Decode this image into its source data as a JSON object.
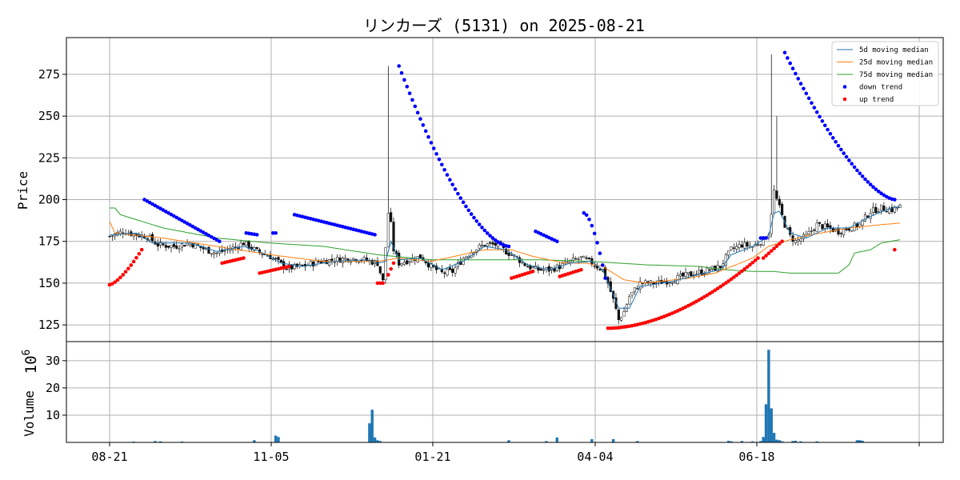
{
  "chart_data": {
    "type": "candlestick",
    "title": "リンカーズ (5131) on 2025-08-21",
    "x_tick_labels": [
      "08-21",
      "11-05",
      "01-21",
      "04-04",
      "06-18",
      ""
    ],
    "price_panel": {
      "ylabel": "Price",
      "yticks": [
        125,
        150,
        175,
        200,
        225,
        250,
        275
      ],
      "ylim": [
        115,
        297
      ],
      "grid": true,
      "legend": {
        "placement": "top-right",
        "entries": [
          {
            "label": " 5d moving median",
            "color": "#1f77b4",
            "style": "line"
          },
          {
            "label": "25d moving median",
            "color": "#ff7f0e",
            "style": "line"
          },
          {
            "label": "75d moving median",
            "color": "#2ca02c",
            "style": "line"
          },
          {
            "label": "down trend",
            "color": "#0000ff",
            "style": "dot"
          },
          {
            "label": "up trend",
            "color": "#ff0000",
            "style": "dot"
          }
        ]
      },
      "candle_anchor_closes": [
        [
          0,
          178
        ],
        [
          5,
          181
        ],
        [
          10,
          179
        ],
        [
          14,
          178
        ],
        [
          18,
          173
        ],
        [
          24,
          172
        ],
        [
          30,
          174
        ],
        [
          36,
          170
        ],
        [
          40,
          168
        ],
        [
          46,
          171
        ],
        [
          50,
          174
        ],
        [
          55,
          169
        ],
        [
          60,
          166
        ],
        [
          66,
          159
        ],
        [
          72,
          160
        ],
        [
          78,
          163
        ],
        [
          84,
          164
        ],
        [
          90,
          165
        ],
        [
          95,
          164
        ],
        [
          100,
          162
        ],
        [
          102,
          151
        ],
        [
          104,
          192
        ],
        [
          105,
          185
        ],
        [
          106,
          170
        ],
        [
          108,
          162
        ],
        [
          112,
          164
        ],
        [
          116,
          166
        ],
        [
          120,
          160
        ],
        [
          124,
          156
        ],
        [
          128,
          157
        ],
        [
          132,
          165
        ],
        [
          136,
          170
        ],
        [
          140,
          173
        ],
        [
          144,
          173
        ],
        [
          148,
          169
        ],
        [
          152,
          165
        ],
        [
          156,
          160
        ],
        [
          160,
          158
        ],
        [
          164,
          158
        ],
        [
          168,
          160
        ],
        [
          172,
          163
        ],
        [
          176,
          165
        ],
        [
          180,
          162
        ],
        [
          184,
          158
        ],
        [
          186,
          150
        ],
        [
          188,
          140
        ],
        [
          190,
          128
        ],
        [
          192,
          133
        ],
        [
          194,
          142
        ],
        [
          198,
          150
        ],
        [
          204,
          150
        ],
        [
          210,
          152
        ],
        [
          216,
          155
        ],
        [
          222,
          157
        ],
        [
          228,
          160
        ],
        [
          232,
          170
        ],
        [
          236,
          173
        ],
        [
          240,
          172
        ],
        [
          244,
          176
        ],
        [
          246,
          180
        ],
        [
          248,
          205
        ],
        [
          250,
          195
        ],
        [
          252,
          185
        ],
        [
          254,
          178
        ],
        [
          256,
          175
        ],
        [
          260,
          178
        ],
        [
          264,
          185
        ],
        [
          268,
          183
        ],
        [
          272,
          181
        ],
        [
          276,
          183
        ],
        [
          280,
          185
        ],
        [
          284,
          193
        ],
        [
          288,
          195
        ],
        [
          292,
          194
        ],
        [
          295,
          196
        ]
      ],
      "spikes": [
        [
          104,
          280
        ],
        [
          247,
          287
        ],
        [
          249,
          250
        ]
      ],
      "moving_median_5d": [
        [
          0,
          179
        ],
        [
          10,
          180
        ],
        [
          16,
          174
        ],
        [
          30,
          174
        ],
        [
          40,
          169
        ],
        [
          50,
          172
        ],
        [
          56,
          169
        ],
        [
          64,
          162
        ],
        [
          72,
          160
        ],
        [
          84,
          163
        ],
        [
          96,
          164
        ],
        [
          100,
          162
        ],
        [
          103,
          163
        ],
        [
          105,
          175
        ],
        [
          108,
          164
        ],
        [
          116,
          165
        ],
        [
          124,
          158
        ],
        [
          132,
          163
        ],
        [
          140,
          172
        ],
        [
          148,
          170
        ],
        [
          156,
          161
        ],
        [
          164,
          158
        ],
        [
          172,
          162
        ],
        [
          180,
          163
        ],
        [
          184,
          158
        ],
        [
          188,
          143
        ],
        [
          190,
          135
        ],
        [
          194,
          135
        ],
        [
          198,
          148
        ],
        [
          210,
          151
        ],
        [
          222,
          156
        ],
        [
          228,
          158
        ],
        [
          232,
          167
        ],
        [
          240,
          172
        ],
        [
          246,
          178
        ],
        [
          248,
          192
        ],
        [
          250,
          193
        ],
        [
          254,
          180
        ],
        [
          260,
          177
        ],
        [
          268,
          183
        ],
        [
          276,
          183
        ],
        [
          284,
          190
        ],
        [
          292,
          195
        ],
        [
          295,
          196
        ]
      ],
      "moving_median_25d": [
        [
          0,
          187
        ],
        [
          2,
          180
        ],
        [
          20,
          177
        ],
        [
          40,
          172
        ],
        [
          60,
          167
        ],
        [
          80,
          163
        ],
        [
          100,
          163
        ],
        [
          108,
          165
        ],
        [
          120,
          163
        ],
        [
          140,
          170
        ],
        [
          150,
          170
        ],
        [
          158,
          166
        ],
        [
          170,
          162
        ],
        [
          178,
          162
        ],
        [
          184,
          160
        ],
        [
          192,
          152
        ],
        [
          200,
          150
        ],
        [
          216,
          153
        ],
        [
          226,
          156
        ],
        [
          240,
          165
        ],
        [
          246,
          172
        ],
        [
          254,
          176
        ],
        [
          262,
          179
        ],
        [
          276,
          183
        ],
        [
          288,
          185
        ],
        [
          295,
          186
        ]
      ],
      "moving_median_75d": [
        [
          0,
          195
        ],
        [
          2,
          195
        ],
        [
          4,
          191
        ],
        [
          20,
          183
        ],
        [
          40,
          177
        ],
        [
          60,
          174
        ],
        [
          80,
          172
        ],
        [
          100,
          167
        ],
        [
          120,
          164
        ],
        [
          140,
          164
        ],
        [
          160,
          164
        ],
        [
          180,
          163
        ],
        [
          200,
          161
        ],
        [
          220,
          160
        ],
        [
          230,
          158
        ],
        [
          240,
          157
        ],
        [
          248,
          157
        ],
        [
          254,
          156
        ],
        [
          264,
          156
        ],
        [
          272,
          156
        ],
        [
          276,
          161
        ],
        [
          278,
          168
        ],
        [
          284,
          170
        ],
        [
          288,
          174
        ],
        [
          295,
          176
        ]
      ],
      "down_trend": [
        {
          "start": 13,
          "end": 41,
          "from": 200,
          "to": 175
        },
        {
          "start": 51,
          "end": 55,
          "from": 180,
          "to": 179
        },
        {
          "start": 61,
          "end": 62,
          "from": 180,
          "to": 180
        },
        {
          "start": 69,
          "end": 99,
          "from": 191,
          "to": 179
        },
        {
          "start": 108,
          "end": 149,
          "from": 280,
          "to": 172,
          "curve": 1.6
        },
        {
          "start": 159,
          "end": 167,
          "from": 181,
          "to": 175
        },
        {
          "start": 177,
          "end": 185,
          "from": 192,
          "to": 153,
          "curve": 0.6
        },
        {
          "start": 243,
          "end": 245,
          "from": 177,
          "to": 177
        },
        {
          "start": 252,
          "end": 293,
          "from": 288,
          "to": 200,
          "curve": 1.5
        }
      ],
      "up_trend": [
        {
          "start": 0,
          "end": 12,
          "from": 149,
          "to": 170,
          "curve": 0.7
        },
        {
          "start": 42,
          "end": 50,
          "from": 162,
          "to": 165
        },
        {
          "start": 56,
          "end": 67,
          "from": 156,
          "to": 160
        },
        {
          "start": 100,
          "end": 102,
          "from": 150,
          "to": 150
        },
        {
          "start": 104,
          "end": 106,
          "from": 155,
          "to": 162
        },
        {
          "start": 150,
          "end": 158,
          "from": 153,
          "to": 157
        },
        {
          "start": 168,
          "end": 176,
          "from": 154,
          "to": 158
        },
        {
          "start": 186,
          "end": 242,
          "from": 123,
          "to": 165,
          "curve": 0.55
        },
        {
          "start": 244,
          "end": 251,
          "from": 165,
          "to": 175
        },
        {
          "start": 293,
          "end": 293,
          "from": 170,
          "to": 170
        }
      ]
    },
    "volume_panel": {
      "ylabel": "Volume",
      "scale_label": "10^6",
      "yticks": [
        10,
        20,
        30
      ],
      "ylim": [
        0,
        37
      ],
      "grid": true,
      "bars": [
        [
          9,
          0.3
        ],
        [
          17,
          0.5
        ],
        [
          19,
          0.4
        ],
        [
          27,
          0.3
        ],
        [
          54,
          0.8
        ],
        [
          62,
          2.5
        ],
        [
          63,
          2
        ],
        [
          97,
          7
        ],
        [
          98,
          12
        ],
        [
          99,
          1.8
        ],
        [
          100,
          0.8
        ],
        [
          101,
          0.5
        ],
        [
          149,
          0.8
        ],
        [
          163,
          0.5
        ],
        [
          167,
          1.8
        ],
        [
          180,
          1.2
        ],
        [
          188,
          1.2
        ],
        [
          197,
          0.5
        ],
        [
          231,
          0.6
        ],
        [
          232,
          0.4
        ],
        [
          236,
          0.5
        ],
        [
          240,
          0.4
        ],
        [
          243,
          0.5
        ],
        [
          244,
          2
        ],
        [
          245,
          14
        ],
        [
          246,
          34
        ],
        [
          247,
          12.5
        ],
        [
          248,
          3.5
        ],
        [
          249,
          1
        ],
        [
          250,
          0.8
        ],
        [
          251,
          0.4
        ],
        [
          255,
          0.5
        ],
        [
          256,
          0.6
        ],
        [
          258,
          0.4
        ],
        [
          264,
          0.4
        ],
        [
          279,
          0.8
        ],
        [
          280,
          0.8
        ],
        [
          281,
          0.6
        ]
      ]
    }
  }
}
